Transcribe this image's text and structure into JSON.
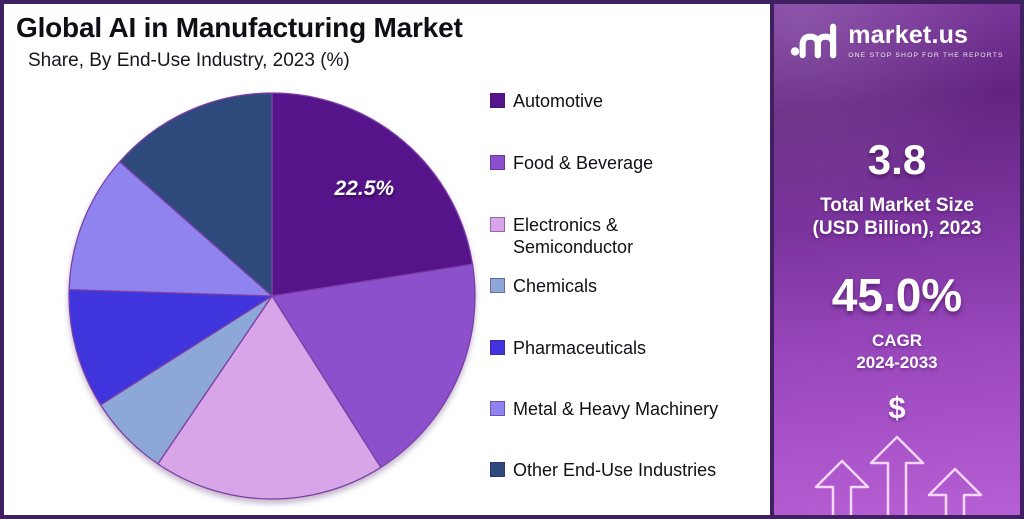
{
  "header": {
    "title": "Global AI in Manufacturing Market",
    "subtitle": "Share, By End-Use Industry, 2023 (%)"
  },
  "chart_data": {
    "type": "pie",
    "title": "Global AI in Manufacturing Market",
    "subtitle": "Share, By End-Use Industry, 2023 (%)",
    "unit": "%",
    "start_angle_deg": 0,
    "direction": "clockwise",
    "legend_position": "right",
    "slices": [
      {
        "label": "Automotive",
        "value": 22.5,
        "color": "#55148a",
        "data_label": "22.5%"
      },
      {
        "label": "Food & Beverage",
        "value": 18.5,
        "color": "#8c50cc"
      },
      {
        "label": "Electronics & Semiconductor",
        "value": 18.5,
        "color": "#d8a6e8"
      },
      {
        "label": "Chemicals",
        "value": 6.5,
        "color": "#8ca7d8"
      },
      {
        "label": "Pharmaceuticals",
        "value": 9.5,
        "color": "#4035dd"
      },
      {
        "label": "Metal & Heavy Machinery",
        "value": 11.0,
        "color": "#8f83f0"
      },
      {
        "label": "Other End-Use Industries",
        "value": 13.5,
        "color": "#2e4a7d"
      }
    ]
  },
  "legend": {
    "items": [
      {
        "label": "Automotive",
        "color": "#55148a"
      },
      {
        "label": "Food & Beverage",
        "color": "#8c50cc"
      },
      {
        "label": "Electronics &\nSemiconductor",
        "color": "#d8a6e8"
      },
      {
        "label": "Chemicals",
        "color": "#8ca7d8"
      },
      {
        "label": "Pharmaceuticals",
        "color": "#4035dd"
      },
      {
        "label": "Metal & Heavy Machinery",
        "color": "#8f83f0"
      },
      {
        "label": "Other End-Use Industries",
        "color": "#2e4a7d"
      }
    ]
  },
  "sidebar": {
    "brand": {
      "name": "market.us",
      "tagline": "ONE STOP SHOP FOR THE REPORTS"
    },
    "stats": [
      {
        "value": "3.8",
        "label": "Total Market Size\n(USD Billion), 2023"
      },
      {
        "value": "45.0%",
        "label": "CAGR\n2024-2033"
      }
    ],
    "dollar_symbol": "$"
  },
  "colors": {
    "frame_border": "#3f2161",
    "panel_bg": "#ffffff",
    "slice_stroke": "#7c3fa6",
    "sidebar_gradient_top": "#622480",
    "sidebar_gradient_bottom": "#b75fd4"
  }
}
